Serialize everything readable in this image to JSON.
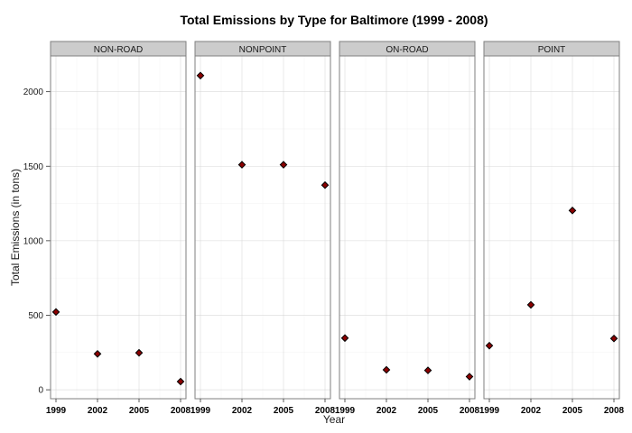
{
  "chart_data": {
    "type": "scatter",
    "title": "Total Emissions by Type for Baltimore (1999 - 2008)",
    "xlabel": "Year",
    "ylabel": "Total Emissions (in tons)",
    "x": [
      1999,
      2002,
      2005,
      2008
    ],
    "x_tick_labels": [
      "1999",
      "2002",
      "2005",
      "2008"
    ],
    "y_ticks": [
      0,
      500,
      1000,
      1500,
      2000
    ],
    "y_tick_labels": [
      "0",
      "500",
      "1000",
      "1500",
      "2000"
    ],
    "ylim": [
      -60,
      2240
    ],
    "grid": true,
    "facets": [
      {
        "label": "NON-ROAD",
        "values": [
          522,
          241,
          248,
          55
        ]
      },
      {
        "label": "NONPOINT",
        "values": [
          2108,
          1510,
          1510,
          1373
        ]
      },
      {
        "label": "ON-ROAD",
        "values": [
          347,
          134,
          130,
          88
        ]
      },
      {
        "label": "POINT",
        "values": [
          296,
          570,
          1203,
          344
        ]
      }
    ],
    "point_color": "#8b0000"
  }
}
